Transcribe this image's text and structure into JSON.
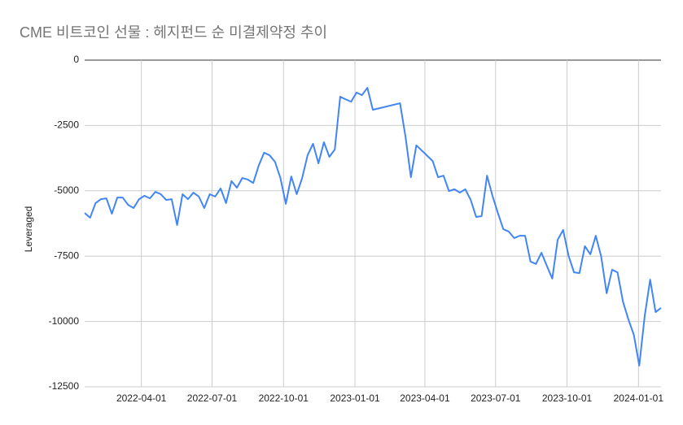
{
  "chart_data": {
    "type": "line",
    "title": "CME 비트코인 선물 : 헤지펀드 순 미결제약정 추이",
    "y_label": "Leveraged",
    "color": "#4285f4",
    "grid": true,
    "x": [
      "2022-01-18",
      "2022-01-25",
      "2022-02-01",
      "2022-02-08",
      "2022-02-15",
      "2022-02-22",
      "2022-03-01",
      "2022-03-08",
      "2022-03-15",
      "2022-03-22",
      "2022-03-29",
      "2022-04-05",
      "2022-04-12",
      "2022-04-19",
      "2022-04-26",
      "2022-05-03",
      "2022-05-10",
      "2022-05-17",
      "2022-05-24",
      "2022-05-31",
      "2022-06-07",
      "2022-06-14",
      "2022-06-21",
      "2022-06-28",
      "2022-07-05",
      "2022-07-12",
      "2022-07-19",
      "2022-07-26",
      "2022-08-02",
      "2022-08-09",
      "2022-08-16",
      "2022-08-23",
      "2022-08-30",
      "2022-09-06",
      "2022-09-13",
      "2022-09-20",
      "2022-09-27",
      "2022-10-04",
      "2022-10-11",
      "2022-10-18",
      "2022-10-25",
      "2022-11-01",
      "2022-11-08",
      "2022-11-15",
      "2022-11-22",
      "2022-11-29",
      "2022-12-06",
      "2022-12-13",
      "2022-12-20",
      "2022-12-27",
      "2023-01-03",
      "2023-01-10",
      "2023-01-17",
      "2023-01-24",
      "2023-02-28",
      "2023-03-07",
      "2023-03-14",
      "2023-03-21",
      "2023-04-11",
      "2023-04-18",
      "2023-04-25",
      "2023-05-02",
      "2023-05-09",
      "2023-05-16",
      "2023-05-23",
      "2023-05-30",
      "2023-06-06",
      "2023-06-13",
      "2023-06-20",
      "2023-06-27",
      "2023-07-04",
      "2023-07-11",
      "2023-07-18",
      "2023-07-25",
      "2023-08-01",
      "2023-08-08",
      "2023-08-15",
      "2023-08-22",
      "2023-08-29",
      "2023-09-05",
      "2023-09-12",
      "2023-09-19",
      "2023-09-26",
      "2023-10-03",
      "2023-10-10",
      "2023-10-17",
      "2023-10-24",
      "2023-10-31",
      "2023-11-07",
      "2023-11-14",
      "2023-11-21",
      "2023-11-28",
      "2023-12-05",
      "2023-12-12",
      "2023-12-19",
      "2023-12-26",
      "2024-01-02",
      "2024-01-09",
      "2024-01-16",
      "2024-01-23",
      "2024-01-30"
    ],
    "values": [
      -5850,
      -6030,
      -5470,
      -5320,
      -5290,
      -5880,
      -5260,
      -5260,
      -5540,
      -5660,
      -5320,
      -5190,
      -5290,
      -5040,
      -5130,
      -5350,
      -5320,
      -6310,
      -5130,
      -5320,
      -5070,
      -5220,
      -5660,
      -5130,
      -5220,
      -4910,
      -5470,
      -4630,
      -4880,
      -4510,
      -4570,
      -4700,
      -4040,
      -3540,
      -3640,
      -3890,
      -4510,
      -5500,
      -4450,
      -5130,
      -4510,
      -3640,
      -3200,
      -3950,
      -3140,
      -3700,
      -3420,
      -1400,
      -1500,
      -1590,
      -1240,
      -1340,
      -1060,
      -1900,
      -1650,
      -2920,
      -4480,
      -3260,
      -3860,
      -4480,
      -4420,
      -5010,
      -4940,
      -5070,
      -4940,
      -5350,
      -6000,
      -5970,
      -4420,
      -5190,
      -5850,
      -6470,
      -6560,
      -6810,
      -6720,
      -6720,
      -7710,
      -7800,
      -7370,
      -7870,
      -8360,
      -6870,
      -6500,
      -7490,
      -8120,
      -8150,
      -7120,
      -7430,
      -6720,
      -7520,
      -8920,
      -8020,
      -8120,
      -9240,
      -9920,
      -10510,
      -11690,
      -9790,
      -8400,
      -9640,
      -9480
    ],
    "xlim": [
      "2022-01-18",
      "2024-01-30"
    ],
    "xticks": [
      "2022-04-01",
      "2022-07-01",
      "2022-10-01",
      "2023-01-01",
      "2023-04-01",
      "2023-07-01",
      "2023-10-01",
      "2024-01-01"
    ],
    "ylim": [
      -12500,
      0
    ],
    "yticks": [
      0,
      -2500,
      -5000,
      -7500,
      -10000,
      -12500
    ]
  }
}
